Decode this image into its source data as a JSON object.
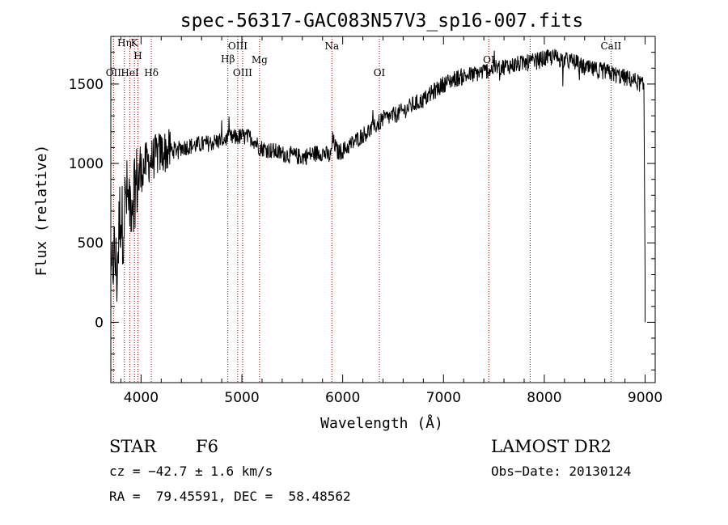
{
  "chart_data": {
    "type": "line",
    "title": "spec-56317-GAC083N57V3_sp16-007.fits",
    "xlabel": "Wavelength (Å)",
    "ylabel": "Flux (relative)",
    "xlim": [
      3700,
      9100
    ],
    "ylim": [
      -380,
      1800
    ],
    "xticks": [
      4000,
      5000,
      6000,
      7000,
      8000,
      9000
    ],
    "yticks": [
      0,
      500,
      1000,
      1500
    ],
    "grid": false,
    "series": [
      {
        "x": [
          3700,
          3730,
          3760,
          3790,
          3820,
          3850,
          3880,
          3910,
          3940,
          3970,
          4000,
          4050,
          4100,
          4150,
          4200,
          4300,
          4400,
          4500,
          4600,
          4700,
          4800,
          4900,
          5000,
          5100,
          5180,
          5300,
          5400,
          5500,
          5600,
          5700,
          5800,
          5880,
          5900,
          5950,
          6000,
          6100,
          6200,
          6300,
          6400,
          6500,
          6600,
          6700,
          6800,
          6900,
          7000,
          7100,
          7200,
          7300,
          7400,
          7500,
          7600,
          7700,
          7800,
          7900,
          8000,
          8100,
          8200,
          8300,
          8400,
          8500,
          8600,
          8700,
          8800,
          8900,
          8960,
          8990,
          9000
        ],
        "y": [
          200,
          450,
          300,
          700,
          600,
          800,
          750,
          800,
          850,
          900,
          950,
          1000,
          1020,
          1050,
          1070,
          1080,
          1100,
          1110,
          1120,
          1130,
          1150,
          1160,
          1170,
          1160,
          1100,
          1080,
          1060,
          1050,
          1040,
          1060,
          1070,
          1040,
          1150,
          1070,
          1080,
          1130,
          1180,
          1220,
          1280,
          1300,
          1330,
          1370,
          1400,
          1450,
          1500,
          1530,
          1550,
          1560,
          1580,
          1600,
          1610,
          1620,
          1630,
          1640,
          1660,
          1670,
          1650,
          1640,
          1600,
          1590,
          1580,
          1560,
          1540,
          1520,
          1500,
          1480,
          300
        ]
      }
    ],
    "lines": [
      {
        "label": "Hη",
        "x": 3835
      },
      {
        "label": "H",
        "x": 3969
      },
      {
        "label": "K",
        "x": 3934
      },
      {
        "label": "OII",
        "x": 3727
      },
      {
        "label": "HeI",
        "x": 3889
      },
      {
        "label": "Hδ",
        "x": 4102
      },
      {
        "label": "OIII",
        "x": 4959
      },
      {
        "label": "Hβ",
        "x": 4861
      },
      {
        "label": "OIII",
        "x": 5007
      },
      {
        "label": "Mg",
        "x": 5175
      },
      {
        "label": "Na",
        "x": 5893
      },
      {
        "label": "OI",
        "x": 6364
      },
      {
        "label": "OI",
        "x": 7450
      },
      {
        "label": "CaII",
        "x": 8662
      },
      {
        "label": "",
        "x": 7860
      }
    ],
    "line_color": "#a00000"
  },
  "info": {
    "class": "STAR",
    "subclass": "F6",
    "survey": "LAMOST DR2",
    "cz": "cz = −42.7 ± 1.6 km/s",
    "obsdate": "Obs−Date: 20130124",
    "radec": "RA =  79.45591, DEC =  58.48562"
  }
}
